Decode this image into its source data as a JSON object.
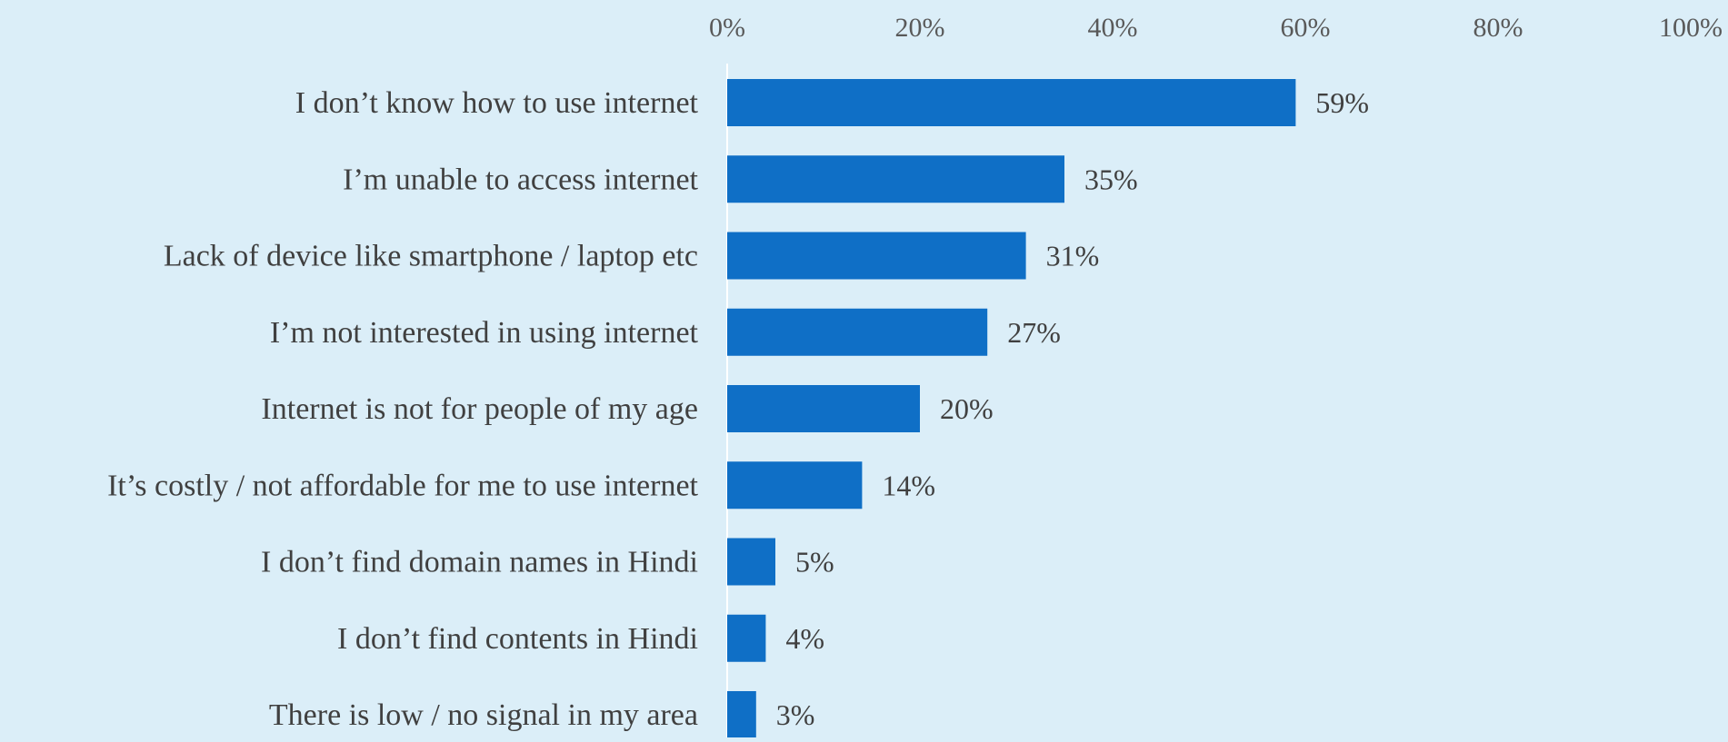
{
  "chart_data": {
    "type": "bar",
    "orientation": "horizontal",
    "categories": [
      "I don’t know how to use internet",
      "I’m unable to access internet",
      "Lack of device like smartphone / laptop etc",
      "I’m not interested in using internet",
      "Internet is not for people of my age",
      "It’s costly / not affordable for me to use internet",
      "I don’t find domain names in Hindi",
      "I don’t find contents in Hindi",
      "There is low / no signal in my area"
    ],
    "values": [
      59,
      35,
      31,
      27,
      20,
      14,
      5,
      4,
      3
    ],
    "value_labels": [
      "59%",
      "35%",
      "31%",
      "27%",
      "20%",
      "14%",
      "5%",
      "4%",
      "3%"
    ],
    "xlim": [
      0,
      100
    ],
    "x_ticks": [
      0,
      20,
      40,
      60,
      80,
      100
    ],
    "x_tick_labels": [
      "0%",
      "20%",
      "40%",
      "60%",
      "80%",
      "100%"
    ],
    "x_axis_position": "top",
    "grid": false,
    "legend": "none",
    "title": "",
    "xlabel": "",
    "ylabel": "",
    "colors": {
      "bar": "#0f6fc6",
      "background": "#dbeef8",
      "axis_line": "#ffffff"
    }
  }
}
